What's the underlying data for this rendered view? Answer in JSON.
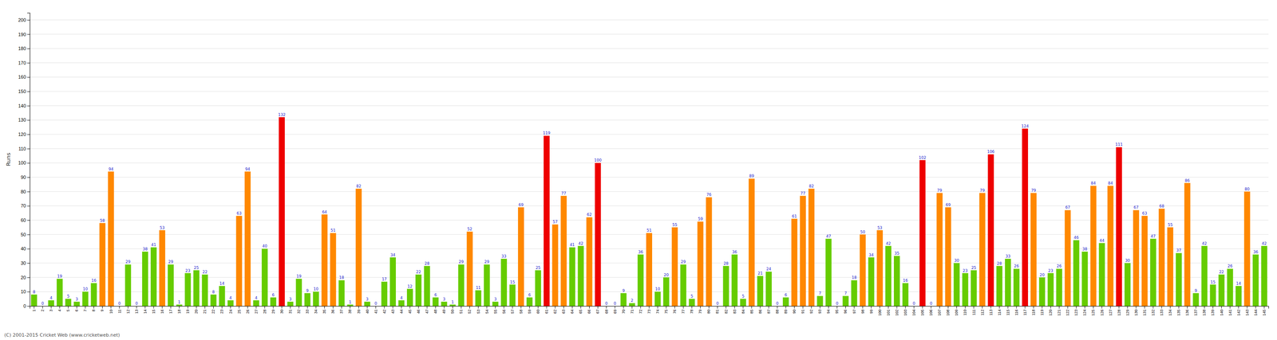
{
  "chart_data": {
    "type": "bar",
    "y_label": "Runs",
    "annotations": [
      "(C) 2001-2015 Cricket Web (www.cricketweb.net)"
    ],
    "categories": [
      "1",
      "2",
      "3",
      "4",
      "5",
      "6",
      "7",
      "8",
      "9",
      "10",
      "11",
      "12",
      "13",
      "14",
      "15",
      "16",
      "17",
      "18",
      "19",
      "20",
      "21",
      "22",
      "23",
      "24",
      "25",
      "26",
      "27",
      "28",
      "29",
      "30",
      "31",
      "32",
      "33",
      "34",
      "35",
      "36",
      "37",
      "38",
      "39",
      "40",
      "41",
      "42",
      "43",
      "44",
      "45",
      "46",
      "47",
      "48",
      "49",
      "50",
      "51",
      "52",
      "53",
      "54",
      "55",
      "56",
      "57",
      "58",
      "59",
      "60",
      "61",
      "62",
      "63",
      "64",
      "65",
      "66",
      "67",
      "68",
      "69",
      "70",
      "71",
      "72",
      "73",
      "74",
      "75",
      "76",
      "77",
      "78",
      "79",
      "80",
      "81",
      "82",
      "83",
      "84",
      "85",
      "86",
      "87",
      "88",
      "89",
      "90",
      "91",
      "92",
      "93",
      "94",
      "95",
      "96",
      "97",
      "98",
      "99",
      "100",
      "101",
      "102",
      "103",
      "104",
      "105",
      "106",
      "107",
      "108",
      "109",
      "110",
      "111",
      "112",
      "113",
      "114",
      "115",
      "116",
      "117",
      "118",
      "119",
      "120",
      "121",
      "122",
      "123",
      "124",
      "125",
      "126",
      "127",
      "128",
      "129",
      "130",
      "131",
      "132",
      "133",
      "134",
      "135",
      "136",
      "137",
      "138",
      "139",
      "140",
      "141",
      "142",
      "143",
      "144",
      "145"
    ],
    "values": [
      8,
      0,
      4,
      19,
      5,
      3,
      10,
      16,
      58,
      94,
      0,
      29,
      0,
      38,
      41,
      53,
      29,
      1,
      23,
      25,
      22,
      8,
      14,
      4,
      63,
      94,
      4,
      40,
      6,
      132,
      3,
      19,
      9,
      10,
      64,
      51,
      18,
      1,
      82,
      3,
      0,
      17,
      34,
      4,
      12,
      22,
      28,
      6,
      3,
      1,
      29,
      52,
      11,
      29,
      3,
      33,
      15,
      69,
      6,
      25,
      119,
      57,
      77,
      41,
      42,
      62,
      100,
      0,
      0,
      9,
      2,
      36,
      51,
      10,
      20,
      55,
      29,
      5,
      59,
      76,
      0,
      28,
      36,
      5,
      89,
      21,
      24,
      0,
      6,
      61,
      77,
      82,
      7,
      47,
      0,
      7,
      18,
      50,
      34,
      53,
      42,
      35,
      16,
      0,
      102,
      0,
      79,
      69,
      30,
      23,
      25,
      79,
      106,
      28,
      33,
      26,
      124,
      79,
      20,
      23,
      26,
      67,
      46,
      38,
      84,
      44,
      84,
      111,
      30,
      67,
      63,
      47,
      68,
      55,
      37,
      86,
      9,
      42,
      15,
      22,
      26,
      14,
      80,
      36,
      42
    ],
    "colors": [
      "#66cc00",
      "#66cc00",
      "#66cc00",
      "#66cc00",
      "#66cc00",
      "#66cc00",
      "#66cc00",
      "#66cc00",
      "#ff8800",
      "#ff8800",
      "#66cc00",
      "#66cc00",
      "#66cc00",
      "#66cc00",
      "#66cc00",
      "#ff8800",
      "#66cc00",
      "#66cc00",
      "#66cc00",
      "#66cc00",
      "#66cc00",
      "#66cc00",
      "#66cc00",
      "#66cc00",
      "#ff8800",
      "#ff8800",
      "#66cc00",
      "#66cc00",
      "#66cc00",
      "#ee0000",
      "#66cc00",
      "#66cc00",
      "#66cc00",
      "#66cc00",
      "#ff8800",
      "#ff8800",
      "#66cc00",
      "#66cc00",
      "#ff8800",
      "#66cc00",
      "#66cc00",
      "#66cc00",
      "#66cc00",
      "#66cc00",
      "#66cc00",
      "#66cc00",
      "#66cc00",
      "#66cc00",
      "#66cc00",
      "#66cc00",
      "#66cc00",
      "#ff8800",
      "#66cc00",
      "#66cc00",
      "#66cc00",
      "#66cc00",
      "#66cc00",
      "#ff8800",
      "#66cc00",
      "#66cc00",
      "#ee0000",
      "#ff8800",
      "#ff8800",
      "#66cc00",
      "#66cc00",
      "#ff8800",
      "#ee0000",
      "#66cc00",
      "#66cc00",
      "#66cc00",
      "#66cc00",
      "#66cc00",
      "#ff8800",
      "#66cc00",
      "#66cc00",
      "#ff8800",
      "#66cc00",
      "#66cc00",
      "#ff8800",
      "#ff8800",
      "#66cc00",
      "#66cc00",
      "#66cc00",
      "#66cc00",
      "#ff8800",
      "#66cc00",
      "#66cc00",
      "#66cc00",
      "#66cc00",
      "#ff8800",
      "#ff8800",
      "#ff8800",
      "#66cc00",
      "#66cc00",
      "#66cc00",
      "#66cc00",
      "#66cc00",
      "#ff8800",
      "#66cc00",
      "#ff8800",
      "#66cc00",
      "#66cc00",
      "#66cc00",
      "#66cc00",
      "#ee0000",
      "#66cc00",
      "#ff8800",
      "#ff8800",
      "#66cc00",
      "#66cc00",
      "#66cc00",
      "#ff8800",
      "#ee0000",
      "#66cc00",
      "#66cc00",
      "#66cc00",
      "#ee0000",
      "#ff8800",
      "#66cc00",
      "#66cc00",
      "#66cc00",
      "#ff8800",
      "#66cc00",
      "#66cc00",
      "#ff8800",
      "#66cc00",
      "#ff8800",
      "#ee0000",
      "#66cc00",
      "#ff8800",
      "#ff8800",
      "#66cc00",
      "#ff8800",
      "#ff8800",
      "#66cc00",
      "#ff8800",
      "#66cc00",
      "#66cc00",
      "#66cc00",
      "#66cc00",
      "#66cc00",
      "#66cc00",
      "#ff8800",
      "#66cc00",
      "#66cc00"
    ],
    "ylim": [
      0,
      205
    ],
    "yticks": [
      0,
      10,
      20,
      30,
      40,
      50,
      60,
      70,
      80,
      90,
      100,
      110,
      120,
      130,
      140,
      150,
      160,
      170,
      180,
      190,
      200
    ],
    "grid": true,
    "data_labels": true
  }
}
